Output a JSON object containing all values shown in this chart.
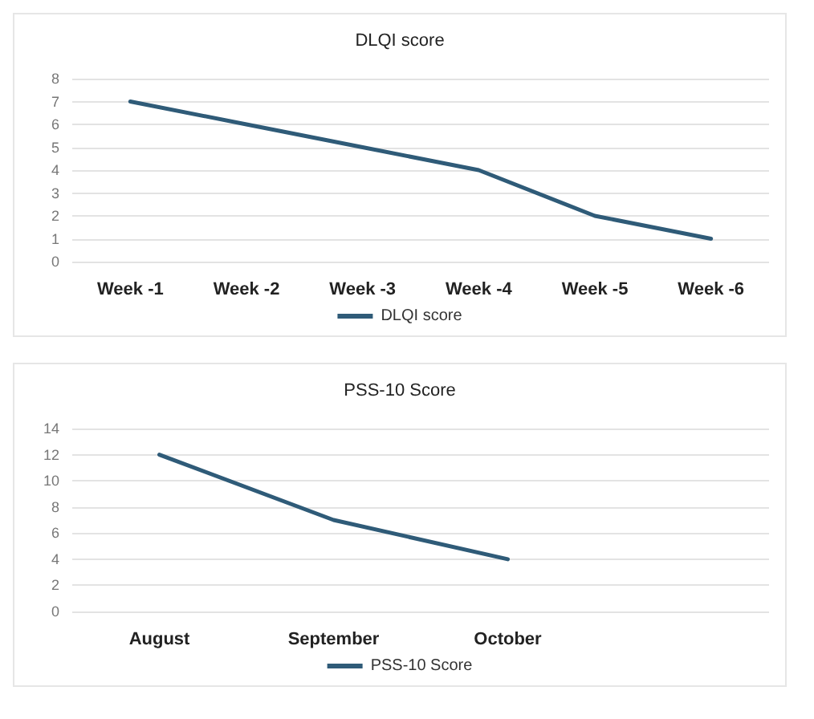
{
  "chart_data": [
    {
      "type": "line",
      "title": "DLQI score",
      "categories": [
        "Week -1",
        "Week -2",
        "Week -3",
        "Week -4",
        "Week -5",
        "Week -6"
      ],
      "series": [
        {
          "name": "DLQI score",
          "color": "#2f5b78",
          "values": [
            7,
            6,
            5,
            4,
            2,
            1
          ]
        }
      ],
      "ylim": [
        0,
        8
      ],
      "yticks": [
        0,
        1,
        2,
        3,
        4,
        5,
        6,
        7,
        8
      ],
      "grid": "y",
      "legend": "bottom",
      "marker": "none"
    },
    {
      "type": "line",
      "title": "PSS-10 Score",
      "categories": [
        "August",
        "September",
        "October",
        null
      ],
      "series": [
        {
          "name": "PSS-10 Score",
          "color": "#2f5b78",
          "values": [
            12,
            7,
            4,
            null
          ]
        }
      ],
      "ylim": [
        0,
        14
      ],
      "yticks": [
        0,
        2,
        4,
        6,
        8,
        10,
        12,
        14
      ],
      "grid": "y",
      "legend": "bottom",
      "marker": "none"
    }
  ]
}
